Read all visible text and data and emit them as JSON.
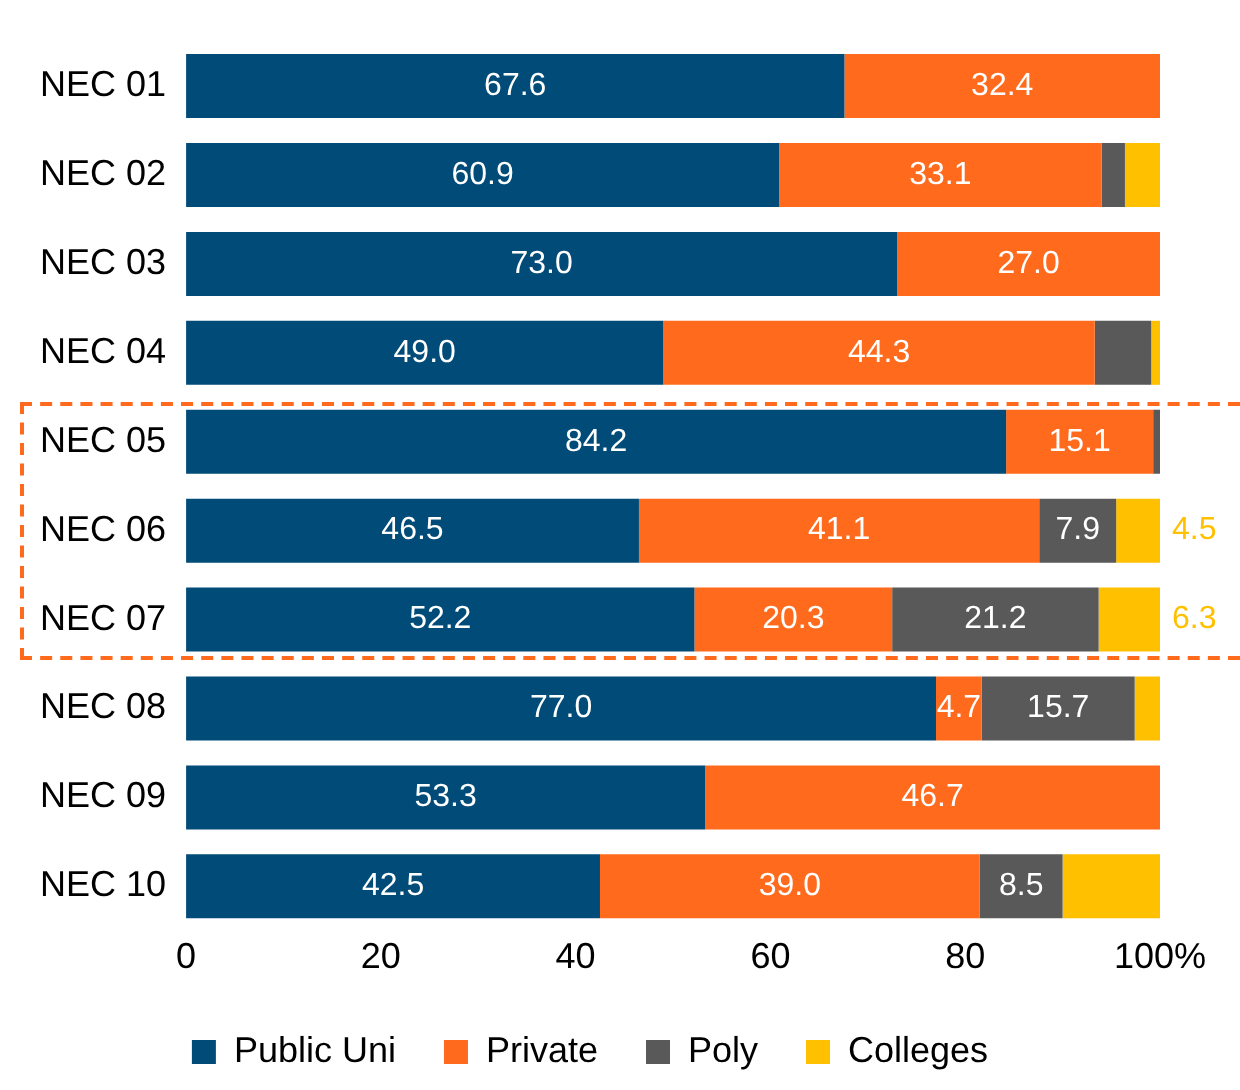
{
  "chart_data": {
    "type": "bar",
    "orientation": "horizontal",
    "stacked": true,
    "categories": [
      "NEC 01",
      "NEC 02",
      "NEC 03",
      "NEC 04",
      "NEC 05",
      "NEC 06",
      "NEC 07",
      "NEC 08",
      "NEC 09",
      "NEC 10"
    ],
    "series": [
      {
        "name": "Public Uni",
        "color": "#004b78",
        "values": [
          67.6,
          60.9,
          73.0,
          49.0,
          84.2,
          46.5,
          52.2,
          77.0,
          53.3,
          42.5
        ],
        "value_labels": [
          "67.6",
          "60.9",
          "73.0",
          "49.0",
          "84.2",
          "46.5",
          "52.2",
          "77.0",
          "53.3",
          "42.5"
        ]
      },
      {
        "name": "Private",
        "color": "#ff6a1c",
        "values": [
          32.4,
          33.1,
          27.0,
          44.3,
          15.1,
          41.1,
          20.3,
          4.7,
          46.7,
          39.0
        ],
        "value_labels": [
          "32.4",
          "33.1",
          "27.0",
          "44.3",
          "15.1",
          "41.1",
          "20.3",
          "4.7",
          "46.7",
          "39.0"
        ]
      },
      {
        "name": "Poly",
        "color": "#595959",
        "values": [
          0,
          2.4,
          0,
          5.8,
          0.7,
          7.9,
          21.2,
          15.7,
          0,
          8.5
        ],
        "value_labels": [
          null,
          null,
          null,
          null,
          null,
          "7.9",
          "21.2",
          "15.7",
          null,
          "8.5"
        ]
      },
      {
        "name": "Colleges",
        "color": "#ffc000",
        "values": [
          0,
          3.6,
          0,
          0.9,
          0,
          4.5,
          6.3,
          2.6,
          0,
          10.0
        ],
        "value_labels": [
          null,
          null,
          null,
          null,
          null,
          "4.5",
          "6.3",
          null,
          null,
          null
        ]
      }
    ],
    "xlim": [
      0,
      100
    ],
    "xticks": [
      0,
      20,
      40,
      60,
      80,
      {
        "value": 100,
        "label": "100%"
      }
    ],
    "grid": false,
    "legend": "bottom"
  }
}
